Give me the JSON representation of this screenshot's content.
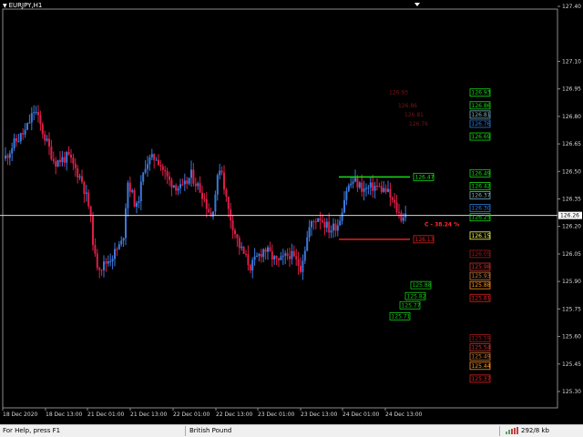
{
  "chart": {
    "title": "EURJPY,H1",
    "price_axis": [
      "127.40",
      "127.10",
      "126.95",
      "126.80",
      "126.65",
      "126.50",
      "126.35",
      "126.20",
      "126.05",
      "125.90",
      "125.75",
      "125.60",
      "125.45",
      "125.30"
    ],
    "price_axis_values": [
      127.4,
      127.1,
      126.95,
      126.8,
      126.65,
      126.5,
      126.35,
      126.2,
      126.05,
      125.9,
      125.75,
      125.6,
      125.45,
      125.3
    ],
    "time_axis": [
      "18 Dec 2020",
      "18 Dec 13:00",
      "21 Dec 01:00",
      "21 Dec 13:00",
      "22 Dec 01:00",
      "22 Dec 13:00",
      "23 Dec 01:00",
      "23 Dec 13:00",
      "24 Dec 01:00",
      "24 Dec 13:00"
    ],
    "current_price": "126.26",
    "current_price_value": 126.26,
    "fib_label": "C - 38.24 %",
    "colors": {
      "bull": "#3c78dc",
      "bear": "#dc1e46",
      "grid": "#ffffff",
      "fib": "#ff2a2a"
    }
  },
  "chart_data": {
    "type": "candlestick",
    "price_range": [
      125.22,
      127.45
    ],
    "bars": [
      {
        "time_index": 0,
        "open": 126.58,
        "high": 126.66,
        "low": 126.52,
        "close": 126.62
      },
      {
        "time_index": 8,
        "open": 126.7,
        "high": 126.9,
        "low": 126.6,
        "close": 126.78
      },
      {
        "time_index": 18,
        "open": 126.62,
        "high": 126.7,
        "low": 126.5,
        "close": 126.55
      },
      {
        "time_index": 28,
        "open": 126.56,
        "high": 126.6,
        "low": 126.3,
        "close": 126.36
      },
      {
        "time_index": 34,
        "open": 126.36,
        "high": 126.4,
        "low": 125.92,
        "close": 125.98
      },
      {
        "time_index": 45,
        "open": 126.0,
        "high": 126.4,
        "low": 125.95,
        "close": 126.35
      },
      {
        "time_index": 60,
        "open": 126.5,
        "high": 126.6,
        "low": 126.3,
        "close": 126.36
      },
      {
        "time_index": 78,
        "open": 126.28,
        "high": 126.35,
        "low": 126.1,
        "close": 126.15
      },
      {
        "time_index": 95,
        "open": 126.05,
        "high": 126.12,
        "low": 125.92,
        "close": 125.98
      },
      {
        "time_index": 110,
        "open": 126.14,
        "high": 126.3,
        "low": 126.1,
        "close": 126.25
      },
      {
        "time_index": 122,
        "open": 126.3,
        "high": 126.5,
        "low": 126.25,
        "close": 126.45
      },
      {
        "time_index": 130,
        "open": 126.4,
        "high": 126.45,
        "low": 126.22,
        "close": 126.28
      }
    ],
    "levels": {
      "upper_right": [
        "126.93",
        "126.86",
        "126.81",
        "126.76",
        "126.69"
      ],
      "middle_right": [
        "126.49",
        "126.42",
        "126.37",
        "126.30",
        "126.25"
      ],
      "current_right": [
        "126.15"
      ],
      "lower_right_1": [
        "126.05",
        "125.98",
        "125.93",
        "125.88",
        "125.81"
      ],
      "lower_right_2": [
        "125.59",
        "125.54",
        "125.49",
        "125.44",
        "125.37"
      ],
      "lower_mid": [
        "125.88",
        "125.82",
        "125.77",
        "125.71"
      ],
      "box_high": "126.47",
      "box_low": "126.13"
    },
    "level_colors": {
      "upper_right": [
        "#14dc14",
        "#14dc14",
        "#7ab0c0",
        "#2a7cd8",
        "#14dc14"
      ],
      "middle_right": [
        "#14dc14",
        "#14dc14",
        "#7ab0c0",
        "#2a7cd8",
        "#14dc14"
      ],
      "current_right": [
        "#ffff50"
      ],
      "lower_right_1": [
        "#a01818",
        "#c83232",
        "#d27832",
        "#ff9620",
        "#e02020"
      ],
      "lower_right_2": [
        "#a01818",
        "#c83232",
        "#d27832",
        "#ff9620",
        "#e02020"
      ],
      "lower_mid": [
        "#14c814",
        "#14c814",
        "#14c814",
        "#14c814"
      ],
      "box_high": "#14dc14",
      "box_low": "#e02020"
    },
    "red_annotations": [
      "126.93",
      "126.86",
      "126.81",
      "126.76"
    ]
  },
  "statusbar": {
    "help": "For Help, press F1",
    "profile": "British Pound",
    "traffic": "292/8 kb"
  }
}
